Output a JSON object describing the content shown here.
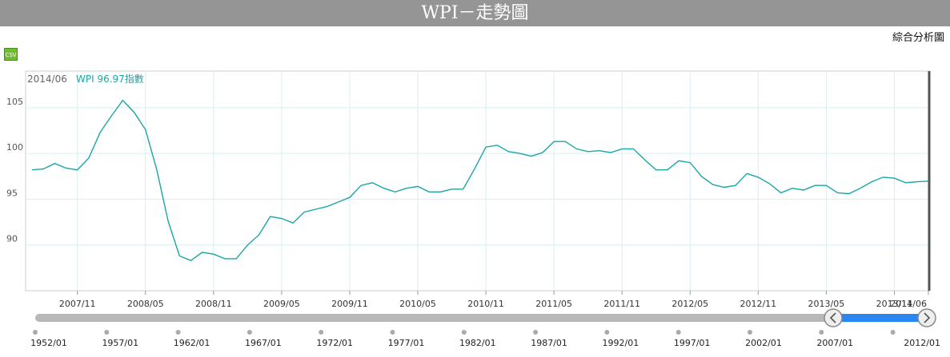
{
  "page": {
    "title": "WPI－走勢圖",
    "subtitle": "綜合分析圖",
    "csv_label": "CSV"
  },
  "readout": {
    "date": "2014/06",
    "label": "WPI 96.97指數"
  },
  "colors": {
    "line": "#1aa6a6",
    "grid": "#d9eef0",
    "navigator_fill": "#2a86f0",
    "navigator_track": "#b8b8b8",
    "crosshair": "#555555"
  },
  "chart_data": {
    "type": "line",
    "title": "WPI－走勢圖",
    "x_ticks": [
      "2007/11",
      "2008/05",
      "2008/11",
      "2009/05",
      "2009/11",
      "2010/05",
      "2010/11",
      "2011/05",
      "2011/11",
      "2012/05",
      "2012/11",
      "2013/05",
      "2013/11",
      "2014/06"
    ],
    "y_ticks": [
      90,
      95,
      100,
      105
    ],
    "ylim": [
      85,
      109
    ],
    "grid": true,
    "series": [
      {
        "name": "WPI",
        "x_start": "2007/07",
        "x_end": "2014/06",
        "values": [
          98.2,
          98.3,
          98.9,
          98.4,
          98.2,
          99.5,
          102.3,
          104.1,
          105.8,
          104.5,
          102.6,
          98.2,
          92.6,
          88.8,
          88.3,
          89.2,
          89.0,
          88.5,
          88.5,
          90.0,
          91.1,
          93.1,
          92.9,
          92.4,
          93.6,
          93.9,
          94.2,
          94.7,
          95.2,
          96.5,
          96.8,
          96.2,
          95.8,
          96.2,
          96.4,
          95.8,
          95.8,
          96.1,
          96.1,
          98.3,
          100.7,
          100.9,
          100.2,
          100.0,
          99.7,
          100.1,
          101.3,
          101.3,
          100.5,
          100.2,
          100.3,
          100.1,
          100.5,
          100.5,
          99.3,
          98.2,
          98.2,
          99.2,
          99.0,
          97.5,
          96.6,
          96.3,
          96.5,
          97.8,
          97.4,
          96.7,
          95.7,
          96.2,
          96.0,
          96.5,
          96.5,
          95.7,
          95.6,
          96.2,
          96.9,
          97.4,
          97.3,
          96.8,
          96.9,
          96.97
        ]
      }
    ],
    "navigator": {
      "labels": [
        "1952/01",
        "1957/01",
        "1962/01",
        "1967/01",
        "1972/01",
        "1977/01",
        "1982/01",
        "1987/01",
        "1992/01",
        "1997/01",
        "2002/01",
        "2007/01",
        "2012/01"
      ],
      "selected_range": [
        "2007/07",
        "2014/06"
      ]
    }
  }
}
